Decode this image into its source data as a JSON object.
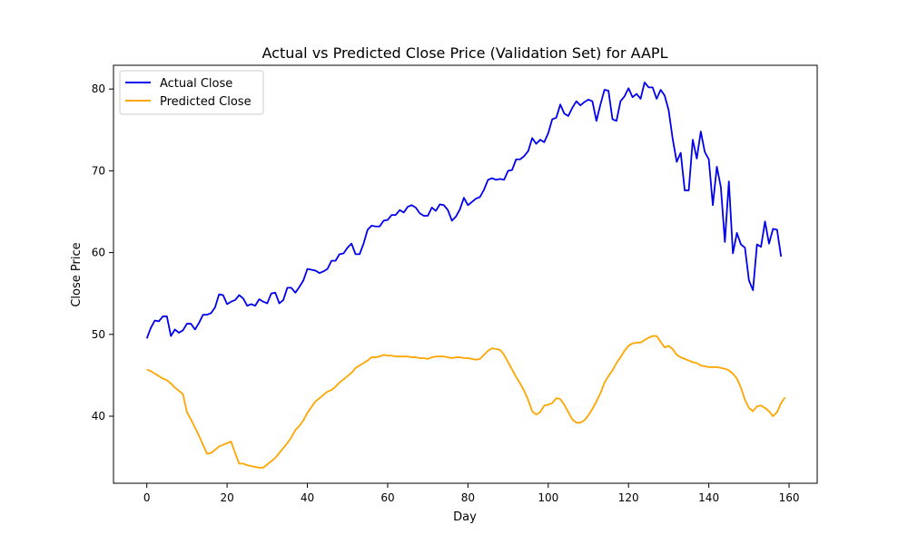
{
  "chart_data": {
    "type": "line",
    "title": "Actual vs Predicted Close Price (Validation Set) for AAPL",
    "xlabel": "Day",
    "ylabel": "Close Price",
    "xlim": [
      -8.3,
      167.0
    ],
    "ylim": [
      31.8,
      82.9
    ],
    "xticks": [
      0,
      20,
      40,
      60,
      80,
      100,
      120,
      140,
      160
    ],
    "yticks": [
      40,
      50,
      60,
      70,
      80
    ],
    "grid": false,
    "legend_position": "top-left",
    "series": [
      {
        "name": "Actual Close",
        "color": "#0000ee",
        "values": [
          49.5,
          50.8,
          51.7,
          51.6,
          52.2,
          52.2,
          49.8,
          50.6,
          50.2,
          50.5,
          51.3,
          51.3,
          50.6,
          51.4,
          52.4,
          52.4,
          52.6,
          53.3,
          54.9,
          54.8,
          53.7,
          54.0,
          54.2,
          54.8,
          54.4,
          53.5,
          53.7,
          53.5,
          54.3,
          54.0,
          53.8,
          55.0,
          55.1,
          53.8,
          54.2,
          55.7,
          55.7,
          55.1,
          55.8,
          56.6,
          58.0,
          57.9,
          57.8,
          57.5,
          57.7,
          58.0,
          59.0,
          59.0,
          59.8,
          59.9,
          60.6,
          61.1,
          59.8,
          59.8,
          61.1,
          62.8,
          63.3,
          63.2,
          63.2,
          63.9,
          64.0,
          64.6,
          64.6,
          65.2,
          64.9,
          65.6,
          65.8,
          65.5,
          64.8,
          64.5,
          64.5,
          65.5,
          65.1,
          65.9,
          65.8,
          65.2,
          63.9,
          64.4,
          65.3,
          66.7,
          65.8,
          66.2,
          66.6,
          66.8,
          67.7,
          68.9,
          69.1,
          68.9,
          69.0,
          68.9,
          70.0,
          70.1,
          71.4,
          71.4,
          71.8,
          72.4,
          74.0,
          73.3,
          73.8,
          73.5,
          74.6,
          76.3,
          76.5,
          78.1,
          77.0,
          76.7,
          77.7,
          78.5,
          78.0,
          78.4,
          78.7,
          78.5,
          76.1,
          78.1,
          79.9,
          79.8,
          76.3,
          76.1,
          78.5,
          79.1,
          80.1,
          79.0,
          79.4,
          78.8,
          80.8,
          80.2,
          80.2,
          78.8,
          79.9,
          79.2,
          77.4,
          73.9,
          71.1,
          72.2,
          67.6,
          67.6,
          73.8,
          71.5,
          74.8,
          72.3,
          71.4,
          65.8,
          70.5,
          68.0,
          61.3,
          68.7,
          59.9,
          62.4,
          61.0,
          60.6,
          56.6,
          55.4,
          61.0,
          60.7,
          63.8,
          61.1,
          62.9,
          62.8,
          59.5
        ]
      },
      {
        "name": "Predicted Close",
        "color": "#ffa500",
        "values": [
          45.7,
          45.5,
          45.2,
          44.9,
          44.6,
          44.4,
          44.0,
          43.5,
          43.1,
          42.7,
          40.5,
          39.6,
          38.6,
          37.6,
          36.5,
          35.4,
          35.5,
          35.9,
          36.3,
          36.5,
          36.7,
          36.9,
          35.5,
          34.2,
          34.2,
          34.0,
          33.9,
          33.8,
          33.7,
          33.7,
          34.1,
          34.5,
          34.9,
          35.5,
          36.1,
          36.7,
          37.4,
          38.3,
          38.8,
          39.5,
          40.4,
          41.1,
          41.8,
          42.2,
          42.6,
          43.0,
          43.2,
          43.6,
          44.1,
          44.5,
          44.9,
          45.3,
          45.9,
          46.2,
          46.5,
          46.8,
          47.2,
          47.2,
          47.3,
          47.5,
          47.4,
          47.4,
          47.3,
          47.3,
          47.3,
          47.3,
          47.2,
          47.2,
          47.1,
          47.1,
          47.0,
          47.2,
          47.3,
          47.3,
          47.3,
          47.2,
          47.1,
          47.2,
          47.2,
          47.1,
          47.1,
          47.0,
          46.9,
          47.0,
          47.5,
          48.0,
          48.3,
          48.2,
          48.1,
          47.5,
          46.6,
          45.7,
          44.8,
          44.0,
          43.1,
          42.0,
          40.6,
          40.2,
          40.5,
          41.3,
          41.4,
          41.6,
          42.2,
          42.1,
          41.4,
          40.5,
          39.6,
          39.2,
          39.2,
          39.5,
          40.1,
          40.9,
          41.8,
          42.8,
          44.1,
          44.9,
          45.6,
          46.5,
          47.2,
          48.0,
          48.6,
          48.9,
          49.0,
          49.0,
          49.3,
          49.6,
          49.8,
          49.8,
          49.1,
          48.4,
          48.6,
          48.2,
          47.5,
          47.2,
          47.0,
          46.8,
          46.6,
          46.5,
          46.2,
          46.1,
          46.0,
          46.0,
          46.0,
          45.9,
          45.8,
          45.6,
          45.2,
          44.6,
          43.5,
          42.0,
          41.0,
          40.6,
          41.2,
          41.3,
          41.0,
          40.6,
          40.0,
          40.5,
          41.6,
          42.3
        ]
      }
    ]
  }
}
